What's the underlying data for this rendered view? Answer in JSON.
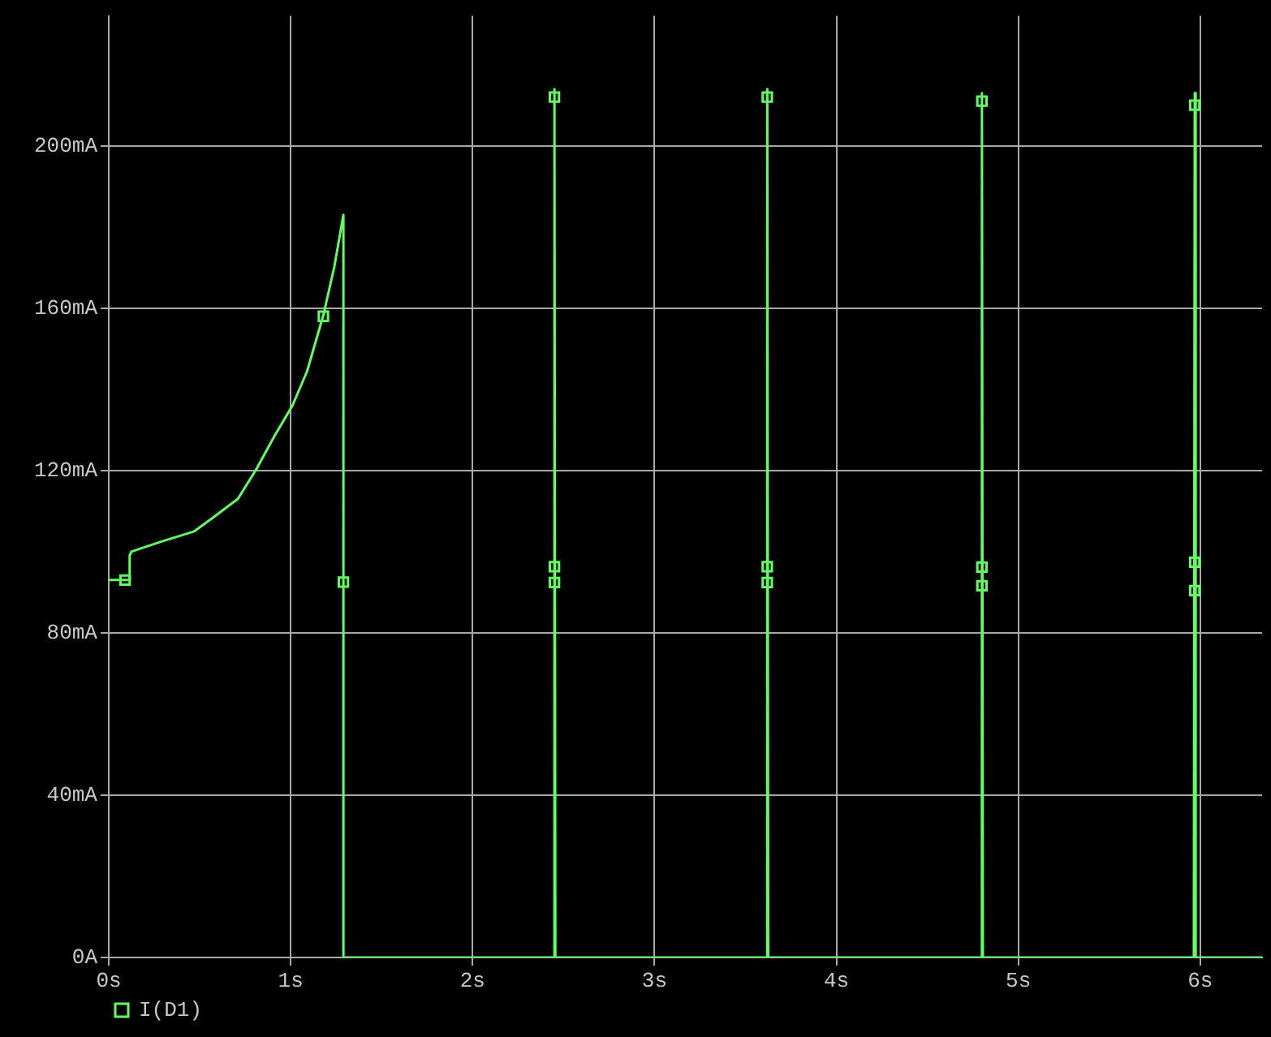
{
  "chart_data": {
    "type": "line",
    "xlim": [
      0,
      6.34
    ],
    "ylim": [
      0,
      232
    ],
    "xticks": [
      {
        "value": 0,
        "label": "0s"
      },
      {
        "value": 1,
        "label": "1s"
      },
      {
        "value": 2,
        "label": "2s"
      },
      {
        "value": 3,
        "label": "3s"
      },
      {
        "value": 4,
        "label": "4s"
      },
      {
        "value": 5,
        "label": "5s"
      },
      {
        "value": 6,
        "label": "6s"
      }
    ],
    "yticks": [
      {
        "value": 0,
        "label": "0A"
      },
      {
        "value": 40,
        "label": "40mA"
      },
      {
        "value": 80,
        "label": "80mA"
      },
      {
        "value": 120,
        "label": "120mA"
      },
      {
        "value": 160,
        "label": "160mA"
      },
      {
        "value": 200,
        "label": "200mA"
      }
    ],
    "grid": true,
    "legend": "bottom left",
    "marker": "square",
    "series": [
      {
        "name": "I(D1)",
        "marker": "none",
        "color": "#5fff5f",
        "x": [
          0,
          0.11,
          0.115,
          0.124,
          0.29,
          0.47,
          0.58,
          0.71,
          0.81,
          0.91,
          1.01,
          1.09,
          1.18,
          1.24,
          1.29,
          1.29,
          2.445,
          2.45,
          2.455,
          3.615,
          3.62,
          3.625,
          4.795,
          4.8,
          4.805,
          5.965,
          5.97,
          5.975,
          6.34
        ],
        "values": [
          93,
          93,
          99,
          100,
          102.5,
          105,
          108.6,
          113,
          120.2,
          128.4,
          136,
          144.4,
          158.3,
          170.2,
          183,
          0,
          0,
          214,
          0,
          0,
          214,
          0,
          0,
          213,
          0,
          0,
          213,
          0,
          0
        ]
      },
      {
        "type": "scatter",
        "color": "#5fff5f",
        "x": [
          0.09,
          1.18,
          1.29,
          2.45,
          2.45,
          2.45,
          3.62,
          3.62,
          3.62,
          4.8,
          4.8,
          4.8,
          5.97,
          5.97,
          5.97
        ],
        "values": [
          93,
          158,
          92.5,
          212,
          96.3,
          92.4,
          212,
          96.3,
          92.4,
          211,
          96.2,
          91.6,
          210,
          97.4,
          90.4
        ]
      }
    ]
  }
}
